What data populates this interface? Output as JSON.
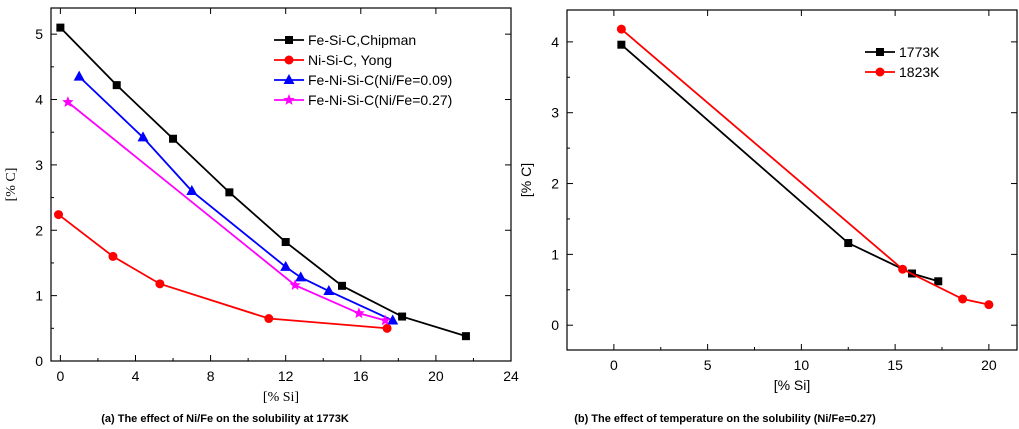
{
  "chart_data": [
    {
      "type": "line",
      "caption": "(a) The effect of Ni/Fe on the solubility at 1773K",
      "xlabel": "[% Si]",
      "ylabel": "[% C]",
      "xlim": [
        -0.5,
        24
      ],
      "ylim": [
        0,
        5.4
      ],
      "xticks": [
        0,
        4,
        8,
        12,
        16,
        20,
        24
      ],
      "yticks": [
        0,
        1,
        2,
        3,
        4,
        5
      ],
      "legend_position": "top-right",
      "series": [
        {
          "name": "Fe-Si-C,Chipman",
          "color": "#000000",
          "marker": "square",
          "x": [
            0,
            3,
            6,
            9,
            12,
            15,
            18.2,
            21.6
          ],
          "y": [
            5.1,
            4.22,
            3.4,
            2.58,
            1.82,
            1.15,
            0.68,
            0.38
          ]
        },
        {
          "name": "Ni-Si-C, Yong",
          "color": "#ff0000",
          "marker": "circle",
          "x": [
            -0.1,
            2.8,
            5.3,
            11.1,
            17.4
          ],
          "y": [
            2.24,
            1.6,
            1.18,
            0.65,
            0.5
          ]
        },
        {
          "name": "Fe-Ni-Si-C(Ni/Fe=0.09)",
          "color": "#0000ff",
          "marker": "triangle",
          "x": [
            1.0,
            4.4,
            7.0,
            12.0,
            12.8,
            14.3,
            17.7
          ],
          "y": [
            4.35,
            3.42,
            2.6,
            1.44,
            1.28,
            1.07,
            0.62
          ]
        },
        {
          "name": "Fe-Ni-Si-C(Ni/Fe=0.27)",
          "color": "#ff00ff",
          "marker": "star",
          "x": [
            0.4,
            12.5,
            15.9,
            17.3
          ],
          "y": [
            3.96,
            1.16,
            0.73,
            0.62
          ]
        }
      ]
    },
    {
      "type": "line",
      "caption": "(b) The effect of temperature on the solubility (Ni/Fe=0.27)",
      "xlabel": "[% Si]",
      "ylabel": "[% C]",
      "xlim": [
        -2.5,
        21.5
      ],
      "ylim": [
        -0.35,
        4.45
      ],
      "xticks": [
        0,
        5,
        10,
        15,
        20
      ],
      "yticks": [
        0,
        1,
        2,
        3,
        4
      ],
      "legend_position": "top-right",
      "series": [
        {
          "name": "1773K",
          "color": "#000000",
          "marker": "square",
          "x": [
            0.4,
            12.5,
            15.9,
            17.3
          ],
          "y": [
            3.96,
            1.16,
            0.73,
            0.62
          ]
        },
        {
          "name": "1823K",
          "color": "#ff0000",
          "marker": "circle",
          "x": [
            0.4,
            15.4,
            18.6,
            20.0
          ],
          "y": [
            4.18,
            0.79,
            0.37,
            0.29
          ]
        }
      ]
    }
  ]
}
